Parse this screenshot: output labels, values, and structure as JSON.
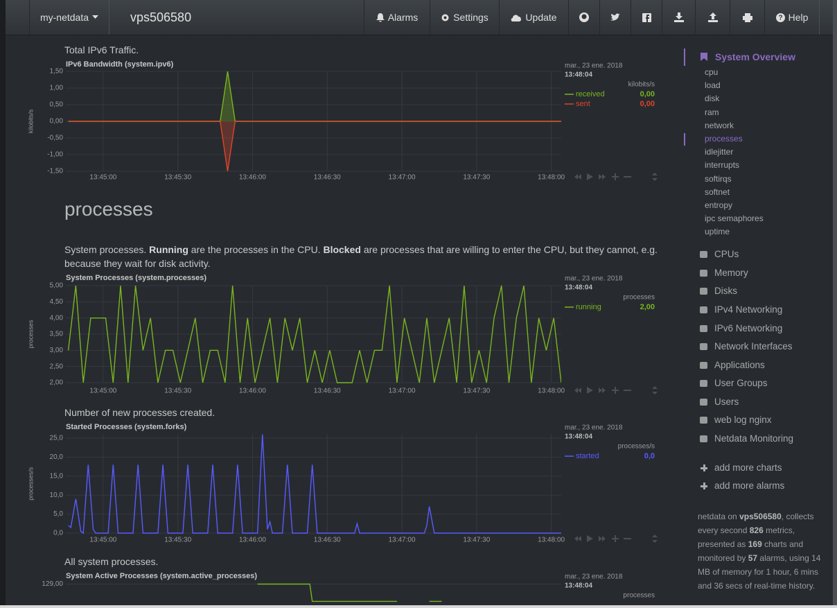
{
  "navbar": {
    "brand": "my-netdata",
    "host": "vps506580",
    "buttons": [
      "Alarms",
      "Settings",
      "Update"
    ],
    "help": "Help"
  },
  "section_heading": "processes",
  "charts": [
    {
      "type": "line",
      "description": [
        {
          "text": "Total IPv6 Traffic."
        }
      ],
      "title": "IPv6 Bandwidth (system.ipv6)",
      "ylabel": "kilobits/s",
      "legend_date": "mar., 23 ene. 2018",
      "legend_time": "13:48:04",
      "units": "kilobits/s",
      "x": [
        "13:44:46",
        "13:45:47",
        "13:45:50",
        "13:45:53",
        "13:48:04"
      ],
      "series": [
        {
          "name": "received",
          "color": "#7ab51d",
          "fill": true,
          "values": [
            0,
            0,
            1.5,
            0,
            0
          ],
          "legend_value": {
            "value": 0,
            "label": "0,00"
          }
        },
        {
          "name": "sent",
          "color": "#e0442a",
          "fill": true,
          "values": [
            0,
            0,
            -1.5,
            0,
            0
          ],
          "legend_value": {
            "value": 0,
            "label": "0,00"
          }
        }
      ],
      "xlim": [
        "13:44:45",
        "13:48:04"
      ],
      "xticks": [
        "13:45:00",
        "13:45:30",
        "13:46:00",
        "13:46:30",
        "13:47:00",
        "13:47:30",
        "13:48:00"
      ],
      "ylim": [
        -1.5,
        1.5
      ],
      "yticks": [
        {
          "value": 1.5,
          "label": "1,50"
        },
        {
          "value": 1,
          "label": "1,00"
        },
        {
          "value": 0.5,
          "label": "0,50"
        },
        {
          "value": 0,
          "label": "0,00"
        },
        {
          "value": -0.5,
          "label": "-0,50"
        },
        {
          "value": -1,
          "label": "-1,00"
        },
        {
          "value": -1.5,
          "label": "-1,50"
        }
      ],
      "grid": true
    },
    {
      "type": "line",
      "description": [
        {
          "text": "System processes. "
        },
        {
          "text": "Running",
          "bold": true
        },
        {
          "text": " are the processes in the CPU. "
        },
        {
          "text": "Blocked",
          "bold": true
        },
        {
          "text": " are processes that are willing to enter the CPU, but they cannot, e.g. because they wait for disk activity."
        }
      ],
      "title": "System Processes (system.processes)",
      "ylabel": "processes",
      "legend_date": "mar., 23 ene. 2018",
      "legend_time": "13:48:04",
      "units": "processes",
      "x": [
        "13:44:46",
        "13:44:49",
        "13:44:52",
        "13:44:55",
        "13:44:58",
        "13:45:01",
        "13:45:04",
        "13:45:07",
        "13:45:10",
        "13:45:13",
        "13:45:16",
        "13:45:19",
        "13:45:22",
        "13:45:25",
        "13:45:28",
        "13:45:31",
        "13:45:34",
        "13:45:37",
        "13:45:40",
        "13:45:43",
        "13:45:46",
        "13:45:49",
        "13:45:52",
        "13:45:55",
        "13:45:58",
        "13:46:01",
        "13:46:04",
        "13:46:07",
        "13:46:10",
        "13:46:13",
        "13:46:16",
        "13:46:19",
        "13:46:22",
        "13:46:25",
        "13:46:28",
        "13:46:31",
        "13:46:34",
        "13:46:37",
        "13:46:40",
        "13:46:43",
        "13:46:46",
        "13:46:49",
        "13:46:52",
        "13:46:55",
        "13:46:58",
        "13:47:01",
        "13:47:04",
        "13:47:07",
        "13:47:10",
        "13:47:13",
        "13:47:16",
        "13:47:19",
        "13:47:22",
        "13:47:25",
        "13:47:28",
        "13:47:31",
        "13:47:34",
        "13:47:37",
        "13:47:40",
        "13:47:43",
        "13:47:46",
        "13:47:49",
        "13:47:52",
        "13:47:55",
        "13:47:58",
        "13:48:01",
        "13:48:04"
      ],
      "series": [
        {
          "name": "running",
          "color": "#7ab51d",
          "values": [
            3,
            5,
            2,
            4,
            4,
            4,
            2,
            5,
            2,
            5,
            3,
            4,
            2,
            3,
            3,
            2,
            3,
            4,
            2,
            3,
            3,
            2,
            5,
            2,
            4,
            2,
            3,
            4,
            2,
            4,
            3,
            4,
            2,
            3,
            2,
            3,
            2,
            2,
            2,
            3,
            2,
            3,
            3,
            5,
            2,
            4,
            3,
            2,
            4,
            2,
            3,
            4,
            2,
            5,
            2,
            3,
            2,
            4,
            5,
            2,
            4,
            5,
            2,
            4,
            3,
            4,
            2
          ],
          "legend_value": {
            "value": 2,
            "label": "2,00"
          }
        }
      ],
      "xlim": [
        "13:44:45",
        "13:48:04"
      ],
      "xticks": [
        "13:45:00",
        "13:45:30",
        "13:46:00",
        "13:46:30",
        "13:47:00",
        "13:47:30",
        "13:48:00"
      ],
      "ylim": [
        2,
        5
      ],
      "yticks": [
        {
          "value": 5,
          "label": "5,00"
        },
        {
          "value": 4.5,
          "label": "4,50"
        },
        {
          "value": 4,
          "label": "4,00"
        },
        {
          "value": 3.5,
          "label": "3,50"
        },
        {
          "value": 3,
          "label": "3,00"
        },
        {
          "value": 2.5,
          "label": "2,50"
        },
        {
          "value": 2,
          "label": "2,00"
        }
      ],
      "grid": true
    },
    {
      "type": "line",
      "description": [
        {
          "text": "Number of new processes created."
        }
      ],
      "title": "Started Processes (system.forks)",
      "ylabel": "processes/s",
      "legend_date": "mar., 23 ene. 2018",
      "legend_time": "13:48:04",
      "units": "processes/s",
      "x": [
        "13:44:46",
        "13:44:47",
        "13:44:49",
        "13:44:51",
        "13:44:52",
        "13:44:54",
        "13:44:56",
        "13:44:57",
        "13:45:02",
        "13:45:04",
        "13:45:06",
        "13:45:12",
        "13:45:14",
        "13:45:16",
        "13:45:22",
        "13:45:24",
        "13:45:26",
        "13:45:32",
        "13:45:34",
        "13:45:36",
        "13:45:42",
        "13:45:44",
        "13:45:46",
        "13:45:52",
        "13:45:54",
        "13:45:56",
        "13:46:02",
        "13:46:04",
        "13:46:06",
        "13:46:07",
        "13:46:08",
        "13:46:12",
        "13:46:14",
        "13:46:16",
        "13:46:22",
        "13:46:24",
        "13:46:26",
        "13:46:41",
        "13:46:42",
        "13:46:43",
        "13:47:09",
        "13:47:10",
        "13:47:11",
        "13:47:13",
        "13:48:04"
      ],
      "series": [
        {
          "name": "started",
          "color": "#5a5aff",
          "values": [
            2,
            1.5,
            9,
            0.5,
            0,
            18,
            1,
            0,
            0,
            18,
            0,
            0,
            18,
            0,
            0,
            18,
            0,
            0,
            18,
            0,
            0,
            18,
            0,
            0,
            18,
            0,
            0,
            26,
            1,
            3,
            0,
            0,
            18,
            0,
            0,
            18,
            0,
            0,
            2.5,
            0,
            0,
            2,
            7,
            0,
            0
          ],
          "legend_value": {
            "value": 0,
            "label": "0,0"
          }
        }
      ],
      "xlim": [
        "13:44:45",
        "13:48:04"
      ],
      "xticks": [
        "13:45:00",
        "13:45:30",
        "13:46:00",
        "13:46:30",
        "13:47:00",
        "13:47:30",
        "13:48:00"
      ],
      "ylim": [
        0,
        26
      ],
      "yticks": [
        {
          "value": 25,
          "label": "25,0"
        },
        {
          "value": 20,
          "label": "20,0"
        },
        {
          "value": 15,
          "label": "15,0"
        },
        {
          "value": 10,
          "label": "10,0"
        },
        {
          "value": 5,
          "label": "5,0"
        },
        {
          "value": 0,
          "label": "0,0"
        }
      ],
      "grid": true
    },
    {
      "type": "line",
      "description": [
        {
          "text": "All system processes."
        }
      ],
      "title": "System Active Processes (system.active_processes)",
      "legend_date": "mar., 23 ene. 2018",
      "legend_time": "13:48:04",
      "units": "processes",
      "x": [
        "13:46:02",
        "13:46:23",
        "13:46:24",
        "13:46:58",
        "13:47:00",
        "13:47:11",
        "13:47:16"
      ],
      "series": [
        {
          "color": "#7ab51d",
          "values": [
            129,
            129,
            128,
            128,
            null,
            128,
            128
          ]
        }
      ],
      "xlim": [
        "13:44:45",
        "13:48:04"
      ],
      "xticks": [],
      "ylim": [
        124,
        129.3
      ],
      "yticks": [
        {
          "value": 129,
          "label": "129,00"
        }
      ],
      "grid": true
    }
  ],
  "sidebar": {
    "section": "System Overview",
    "items": [
      "cpu",
      "load",
      "disk",
      "ram",
      "network",
      "processes",
      "idlejitter",
      "interrupts",
      "softirqs",
      "softnet",
      "entropy",
      "ipc semaphores",
      "uptime"
    ],
    "active_item": 5,
    "menu": [
      "CPUs",
      "Memory",
      "Disks",
      "IPv4 Networking",
      "IPv6 Networking",
      "Network Interfaces",
      "Applications",
      "User Groups",
      "Users",
      "web log nginx",
      "Netdata Monitoring"
    ],
    "actions": [
      "add more charts",
      "add more alarms"
    ],
    "footer": [
      {
        "text": "netdata on "
      },
      {
        "text": "vps506580",
        "bold": true
      },
      {
        "text": ", collects every second "
      },
      {
        "text": "826",
        "bold": true
      },
      {
        "text": " metrics, presented as "
      },
      {
        "text": "169",
        "bold": true
      },
      {
        "text": " charts and monitored by "
      },
      {
        "text": "57",
        "bold": true
      },
      {
        "text": " alarms, using 14 MB of memory for 1 hour, 6 mins and 36 secs of real-time history."
      }
    ]
  }
}
